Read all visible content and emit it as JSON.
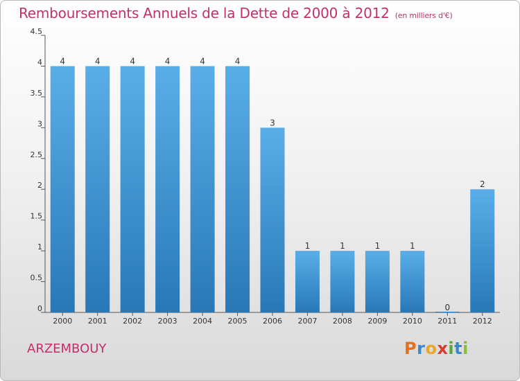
{
  "header": {
    "title": "Remboursements Annuels de la Dette de 2000 à 2012",
    "unit": "(en milliers d'€)"
  },
  "footer": {
    "commune": "ARZEMBOUY",
    "logo_letters": [
      "P",
      "r",
      "o",
      "x",
      "i",
      "t",
      "i"
    ],
    "logo_colors": [
      "#e2711d",
      "#3b88c4",
      "#e8a92b",
      "#d73b2f",
      "#5aa63c",
      "#3b88c4",
      "#8cbb3a"
    ]
  },
  "chart_data": {
    "type": "bar",
    "categories": [
      "2000",
      "2001",
      "2002",
      "2003",
      "2004",
      "2005",
      "2006",
      "2007",
      "2008",
      "2009",
      "2010",
      "2011",
      "2012"
    ],
    "values": [
      4,
      4,
      4,
      4,
      4,
      4,
      3,
      1,
      1,
      1,
      1,
      0,
      2
    ],
    "data_labels": [
      "4",
      "4",
      "4",
      "4",
      "4",
      "4",
      "3",
      "1",
      "1",
      "1",
      "1",
      "0",
      "2"
    ],
    "yticks": [
      "0",
      "0.5",
      "1",
      "1.5",
      "2",
      "2.5",
      "3",
      "3.5",
      "4",
      "4.5"
    ],
    "ylim": [
      0,
      4.5
    ],
    "grid": false,
    "colors": {
      "bar_top": "#5aaee8",
      "bar_bottom": "#2878b8",
      "axis": "#555555",
      "label": "#333333"
    }
  }
}
